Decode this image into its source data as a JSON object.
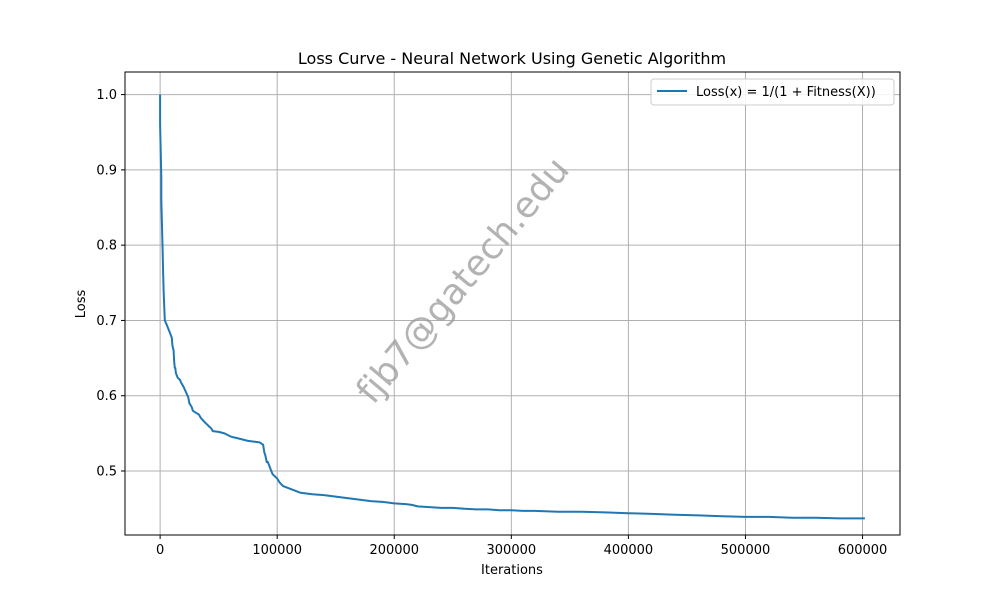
{
  "chart_data": {
    "type": "line",
    "title": "Loss Curve - Neural Network Using Genetic Algorithm",
    "xlabel": "Iterations",
    "ylabel": "Loss",
    "xlim": [
      -30000,
      632000
    ],
    "ylim": [
      0.415,
      1.03
    ],
    "xticks": [
      0,
      100000,
      200000,
      300000,
      400000,
      500000,
      600000
    ],
    "xtick_labels": [
      "0",
      "100000",
      "200000",
      "300000",
      "400000",
      "500000",
      "600000"
    ],
    "yticks": [
      0.5,
      0.6,
      0.7,
      0.8,
      0.9,
      1.0
    ],
    "ytick_labels": [
      "0.5",
      "0.6",
      "0.7",
      "0.8",
      "0.9",
      "1.0"
    ],
    "grid": true,
    "legend_position": "upper right",
    "watermark": "fjb7@gatech.edu",
    "series": [
      {
        "name": "Loss(x) = 1/(1 + Fitness(X))",
        "color": "#1f77b4",
        "x": [
          0,
          0,
          1000,
          1000,
          2000,
          2500,
          3000,
          3500,
          4000,
          6000,
          8000,
          10000,
          10500,
          11500,
          12000,
          12500,
          13000,
          13500,
          15000,
          17000,
          18000,
          20000,
          22000,
          24000,
          25000,
          27000,
          28000,
          30000,
          33000,
          35000,
          38000,
          40000,
          42000,
          44000,
          45000,
          50000,
          55000,
          60000,
          62000,
          65000,
          70000,
          75000,
          80000,
          85000,
          88000,
          88500,
          89000,
          90000,
          91000,
          92000,
          92500,
          93000,
          95000,
          96000,
          98000,
          100000,
          102000,
          105000,
          110000,
          115000,
          120000,
          130000,
          140000,
          150000,
          160000,
          170000,
          180000,
          190000,
          200000,
          210000,
          215000,
          220000,
          230000,
          240000,
          250000,
          260000,
          270000,
          280000,
          290000,
          300000,
          310000,
          320000,
          340000,
          360000,
          380000,
          400000,
          420000,
          440000,
          460000,
          480000,
          500000,
          520000,
          540000,
          560000,
          580000,
          600000,
          602000
        ],
        "y": [
          1.0,
          0.96,
          0.89,
          0.86,
          0.8,
          0.77,
          0.74,
          0.72,
          0.7,
          0.693,
          0.685,
          0.677,
          0.667,
          0.66,
          0.645,
          0.637,
          0.637,
          0.63,
          0.624,
          0.621,
          0.617,
          0.612,
          0.605,
          0.598,
          0.59,
          0.585,
          0.58,
          0.578,
          0.575,
          0.57,
          0.565,
          0.562,
          0.559,
          0.556,
          0.553,
          0.552,
          0.55,
          0.546,
          0.545,
          0.544,
          0.542,
          0.54,
          0.539,
          0.538,
          0.535,
          0.53,
          0.525,
          0.52,
          0.512,
          0.512,
          0.51,
          0.508,
          0.5,
          0.496,
          0.493,
          0.49,
          0.485,
          0.48,
          0.477,
          0.474,
          0.471,
          0.469,
          0.468,
          0.466,
          0.464,
          0.462,
          0.46,
          0.459,
          0.457,
          0.456,
          0.455,
          0.453,
          0.452,
          0.451,
          0.451,
          0.45,
          0.449,
          0.449,
          0.448,
          0.448,
          0.447,
          0.447,
          0.446,
          0.446,
          0.445,
          0.444,
          0.443,
          0.442,
          0.441,
          0.44,
          0.439,
          0.439,
          0.438,
          0.438,
          0.437,
          0.437,
          0.437
        ]
      }
    ]
  }
}
